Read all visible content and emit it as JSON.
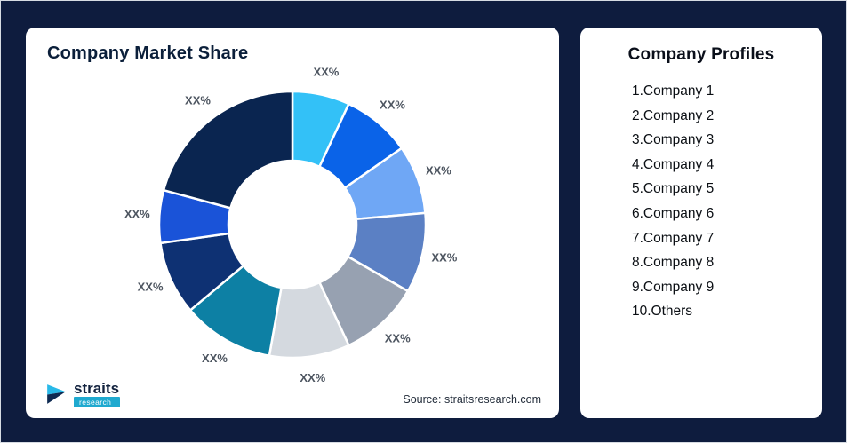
{
  "page": {
    "background": "#0e1c3e",
    "card_background": "#ffffff"
  },
  "market_share_card": {
    "title": "Company Market Share",
    "source": "Source: straitsresearch.com",
    "logo": {
      "brand": "straits",
      "sub": "research"
    }
  },
  "profiles_card": {
    "title": "Company Profiles",
    "items": [
      "1.Company 1",
      "2.Company 2",
      "3.Company 3",
      "4.Company 4",
      "5.Company 5",
      "6.Company 6",
      "7.Company 7",
      "8.Company 8",
      "9.Company 9",
      "10.Others"
    ]
  },
  "chart_data": {
    "type": "pie",
    "subtype": "donut",
    "title": "Company Market Share",
    "legend": "none",
    "value_labels": "placeholder",
    "segments": [
      {
        "name": "Company 1",
        "label": "XX%",
        "angle_deg": 25,
        "color": "#33c1f7"
      },
      {
        "name": "Company 2",
        "label": "XX%",
        "angle_deg": 30,
        "color": "#0a63e8"
      },
      {
        "name": "Company 3",
        "label": "XX%",
        "angle_deg": 30,
        "color": "#6fa7f5"
      },
      {
        "name": "Company 4",
        "label": "XX%",
        "angle_deg": 35,
        "color": "#5b80c4"
      },
      {
        "name": "Company 5",
        "label": "XX%",
        "angle_deg": 35,
        "color": "#97a1b1"
      },
      {
        "name": "Company 6",
        "label": "XX%",
        "angle_deg": 35,
        "color": "#d4d9df"
      },
      {
        "name": "Company 7",
        "label": "XX%",
        "angle_deg": 40,
        "color": "#0d80a4"
      },
      {
        "name": "Company 8",
        "label": "XX%",
        "angle_deg": 32,
        "color": "#0e3173"
      },
      {
        "name": "Company 9",
        "label": "XX%",
        "angle_deg": 23,
        "color": "#1a53d8"
      },
      {
        "name": "Others",
        "label": "XX%",
        "angle_deg": 75,
        "color": "#0a2550"
      }
    ]
  }
}
